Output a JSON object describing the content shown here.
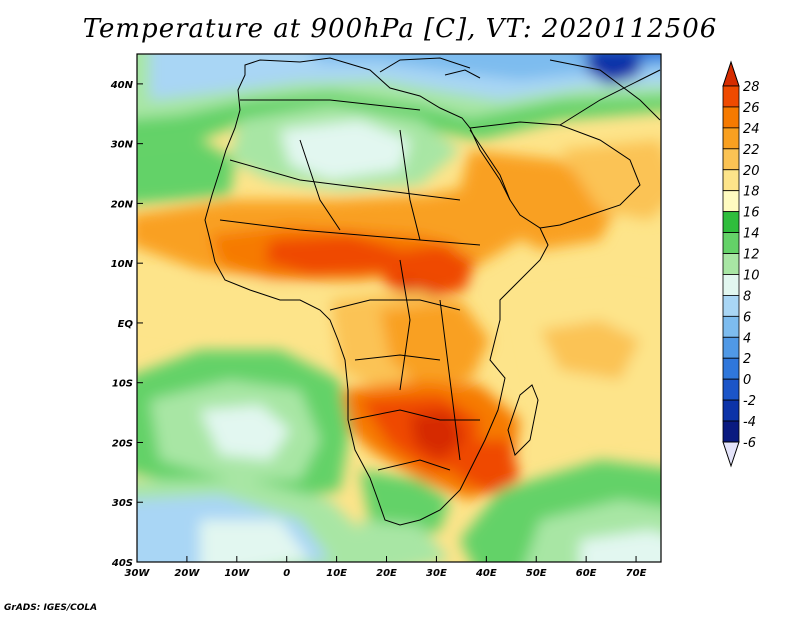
{
  "title": "Temperature at 900hPa [C], VT: 2020112506",
  "credit": "GrADS: IGES/COLA",
  "map": {
    "lon_range": [
      -30,
      75
    ],
    "lat_range": [
      -40,
      45
    ],
    "lon_ticks": [
      {
        "value": -30,
        "label": "30W"
      },
      {
        "value": -20,
        "label": "20W"
      },
      {
        "value": -10,
        "label": "10W"
      },
      {
        "value": 0,
        "label": "0"
      },
      {
        "value": 10,
        "label": "10E"
      },
      {
        "value": 20,
        "label": "20E"
      },
      {
        "value": 30,
        "label": "30E"
      },
      {
        "value": 40,
        "label": "40E"
      },
      {
        "value": 50,
        "label": "50E"
      },
      {
        "value": 60,
        "label": "60E"
      },
      {
        "value": 70,
        "label": "70E"
      }
    ],
    "lat_ticks": [
      {
        "value": 40,
        "label": "40N"
      },
      {
        "value": 30,
        "label": "30N"
      },
      {
        "value": 20,
        "label": "20N"
      },
      {
        "value": 10,
        "label": "10N"
      },
      {
        "value": 0,
        "label": "EQ"
      },
      {
        "value": -10,
        "label": "10S"
      },
      {
        "value": -20,
        "label": "20S"
      },
      {
        "value": -30,
        "label": "30S"
      },
      {
        "value": -40,
        "label": "40S"
      }
    ]
  },
  "colorbar": {
    "levels": [
      "28",
      "26",
      "24",
      "22",
      "20",
      "18",
      "16",
      "14",
      "12",
      "10",
      "8",
      "6",
      "4",
      "2",
      "0",
      "-2",
      "-4",
      "-6"
    ],
    "colors": [
      "#d62c00",
      "#ef4a00",
      "#f67a00",
      "#f9a020",
      "#fbc354",
      "#fde48a",
      "#fffbc0",
      "#2fbe3c",
      "#64d268",
      "#a8e6a4",
      "#e2f7f0",
      "#a9d6f5",
      "#7dbcef",
      "#5099e6",
      "#2f77db",
      "#1b55c8",
      "#0c33a8",
      "#0a1a80",
      "#e4e4fa"
    ]
  }
}
